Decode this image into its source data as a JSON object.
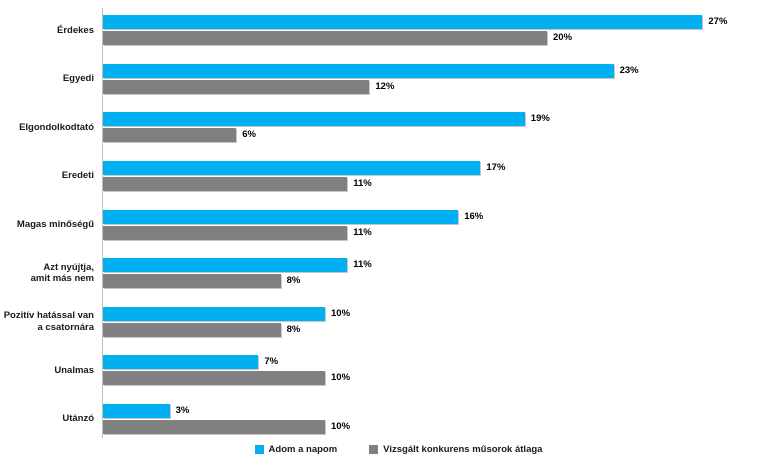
{
  "chart_data": {
    "type": "bar",
    "orientation": "horizontal",
    "title": "",
    "categories": [
      "Érdekes",
      "Egyedi",
      "Elgondolkodtató",
      "Eredeti",
      "Magas minőségű",
      "Azt nyújtja,\namit más nem",
      "Pozitív hatással van\na csatornára",
      "Unalmas",
      "Utánzó"
    ],
    "series": [
      {
        "name": "Adom a napom",
        "color": "#00B0F0",
        "values": [
          27,
          23,
          19,
          17,
          16,
          11,
          10,
          7,
          3
        ]
      },
      {
        "name": "Vizsgált konkurens műsorok átlaga",
        "color": "#808080",
        "values": [
          20,
          12,
          6,
          11,
          11,
          8,
          8,
          10,
          10
        ]
      }
    ],
    "value_suffix": "%",
    "xlim": [
      0,
      28
    ],
    "grid": false,
    "legend_position": "bottom",
    "axis_line_color": "#bfbfbf",
    "background": "#ffffff",
    "label_color": "#1a1a1a"
  }
}
